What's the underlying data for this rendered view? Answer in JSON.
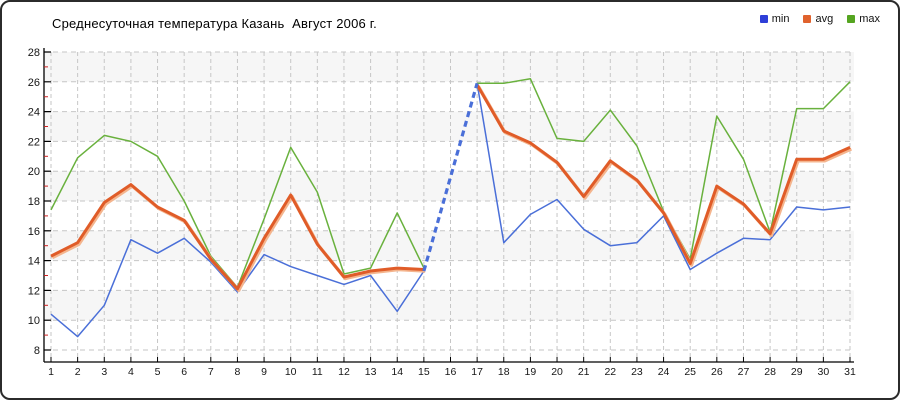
{
  "window": {
    "background": "#ffffff",
    "border_color": "#2b2b2b"
  },
  "header": {
    "title": "Среднесуточная температура Казань  Август 2006 г."
  },
  "legend": {
    "position": "top-right",
    "items": [
      {
        "label": "min",
        "color": "#2e3fd8"
      },
      {
        "label": "avg",
        "color": "#e0622d"
      },
      {
        "label": "max",
        "color": "#55a520"
      }
    ]
  },
  "axes": {
    "y_ticks": [
      28,
      26,
      24,
      22,
      20,
      18,
      16,
      14,
      12,
      10,
      8
    ],
    "y_minor_ticks": [
      27,
      25,
      23,
      21,
      19,
      17,
      15,
      13,
      11,
      9
    ],
    "minor_tick_color": "#cc2222",
    "axis_color": "#000000",
    "grid_color": "#c6c6c6",
    "x_ticks": [
      1,
      2,
      3,
      4,
      5,
      6,
      7,
      8,
      9,
      10,
      11,
      12,
      13,
      14,
      15,
      16,
      17,
      18,
      19,
      20,
      21,
      22,
      23,
      24,
      25,
      26,
      27,
      28,
      29,
      30,
      31
    ]
  },
  "chart_data": {
    "type": "line",
    "title": "Среднесуточная температура Казань  Август 2006 г.",
    "xlabel": "",
    "ylabel": "",
    "x": [
      1,
      2,
      3,
      4,
      5,
      6,
      7,
      8,
      9,
      10,
      11,
      12,
      13,
      14,
      15,
      16,
      17,
      18,
      19,
      20,
      21,
      22,
      23,
      24,
      25,
      26,
      27,
      28,
      29,
      30,
      31
    ],
    "ylim": [
      8,
      28
    ],
    "ytick_step": 2,
    "grid": "dashed",
    "plot_bands": [
      "#f6f6f6",
      "#ffffff"
    ],
    "legend_position": "top-right",
    "missing_days": [
      16
    ],
    "min_dashed_interpolation": [
      15,
      17
    ],
    "series": [
      {
        "name": "min",
        "color": "#4a6fd8",
        "width": 1.5,
        "values": [
          10.4,
          8.9,
          11.0,
          15.4,
          14.5,
          15.5,
          13.9,
          11.9,
          14.4,
          13.6,
          13.0,
          12.4,
          13.0,
          10.6,
          13.3,
          null,
          25.9,
          15.2,
          17.1,
          18.1,
          16.1,
          15.0,
          15.2,
          17.0,
          13.4,
          14.5,
          15.5,
          15.4,
          17.6,
          17.4,
          17.6
        ]
      },
      {
        "name": "avg",
        "color": "#e05c28",
        "shadow_color": "#f4b58e",
        "width": 3,
        "values": [
          14.3,
          15.2,
          17.9,
          19.1,
          17.6,
          16.7,
          14.1,
          12.1,
          15.5,
          18.4,
          15.1,
          12.9,
          13.3,
          13.5,
          13.4,
          null,
          25.8,
          22.7,
          21.9,
          20.6,
          18.3,
          20.7,
          19.4,
          17.2,
          13.8,
          19.0,
          17.8,
          15.8,
          20.8,
          20.8,
          21.6
        ]
      },
      {
        "name": "max",
        "color": "#69b13d",
        "width": 1.5,
        "values": [
          17.4,
          20.9,
          22.4,
          22.0,
          21.0,
          18.0,
          14.3,
          12.2,
          16.8,
          21.6,
          18.6,
          13.1,
          13.5,
          17.2,
          13.5,
          null,
          25.9,
          25.9,
          26.2,
          22.2,
          22.0,
          24.1,
          21.7,
          17.3,
          14.1,
          23.7,
          20.8,
          15.9,
          24.2,
          24.2,
          26.0
        ]
      }
    ]
  }
}
